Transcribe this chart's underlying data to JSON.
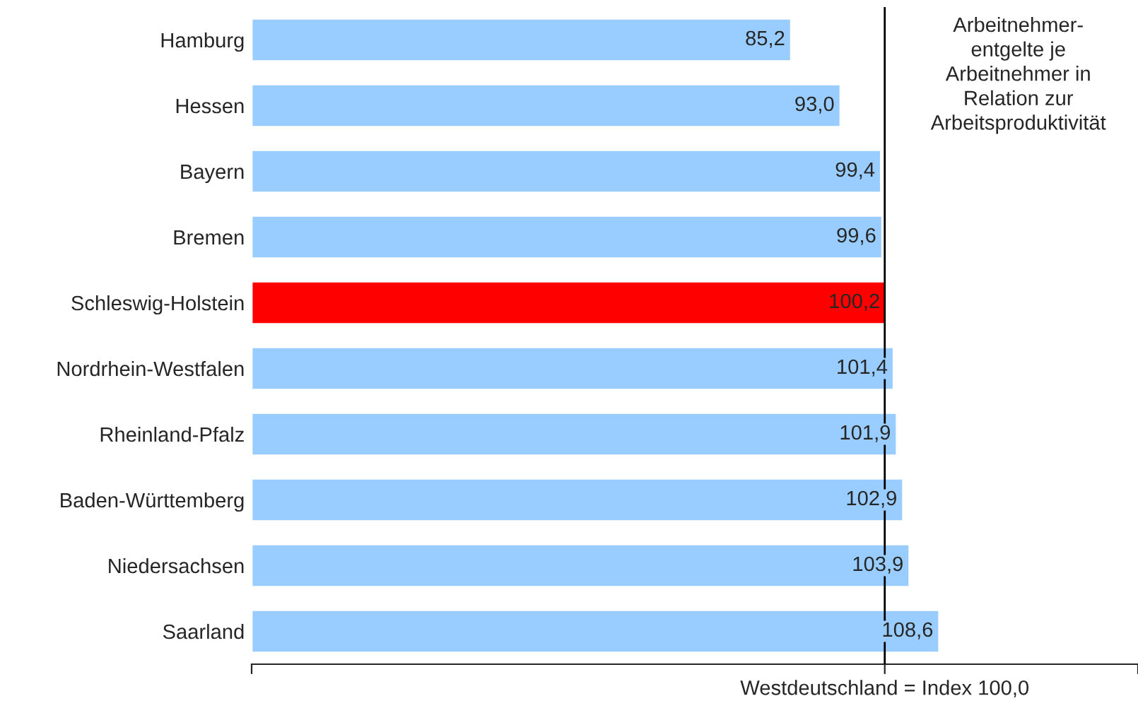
{
  "chart_data": {
    "type": "bar",
    "orientation": "horizontal",
    "categories": [
      "Hamburg",
      "Hessen",
      "Bayern",
      "Bremen",
      "Schleswig-Holstein",
      "Nordrhein-Westfalen",
      "Rheinland-Pfalz",
      "Baden-Württemberg",
      "Niedersachsen",
      "Saarland"
    ],
    "values": [
      85.2,
      93.0,
      99.4,
      99.6,
      100.2,
      101.4,
      101.9,
      102.9,
      103.9,
      108.6
    ],
    "value_labels": [
      "85,2",
      "93,0",
      "99,4",
      "99,6",
      "100,2",
      "101,4",
      "101,9",
      "102,9",
      "103,9",
      "108,6"
    ],
    "colors": [
      "#99ccff",
      "#99ccff",
      "#99ccff",
      "#99ccff",
      "#ff0000",
      "#99ccff",
      "#99ccff",
      "#99ccff",
      "#99ccff",
      "#99ccff"
    ],
    "xlim": [
      0,
      140
    ],
    "xticks": [
      {
        "value": 0,
        "label": null
      },
      {
        "value": 100,
        "label": null
      },
      {
        "value": 140,
        "label": null
      }
    ],
    "tick_labels": "y",
    "ref_lines": [
      {
        "axis": "x",
        "value": 100,
        "label": "Westdeutschland = Index 100,0",
        "color": "#000000"
      }
    ],
    "annotations": [
      "Arbeitnehmer-\nentgelte je\nArbeitnehmer in\nRelation zur\nArbeitsproduktivität"
    ],
    "grid": false,
    "legend": false
  }
}
